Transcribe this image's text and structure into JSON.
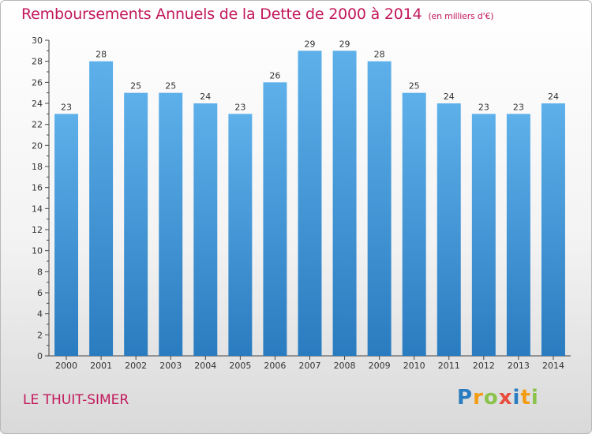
{
  "chart_data": {
    "type": "bar",
    "title": "Remboursements Annuels de la Dette de 2000 à 2014",
    "unit_label": "(en milliers d'€)",
    "categories": [
      "2000",
      "2001",
      "2002",
      "2003",
      "2004",
      "2005",
      "2006",
      "2007",
      "2008",
      "2009",
      "2010",
      "2011",
      "2012",
      "2013",
      "2014"
    ],
    "values": [
      23,
      28,
      25,
      25,
      24,
      23,
      26,
      29,
      29,
      28,
      25,
      24,
      23,
      23,
      24
    ],
    "ylim": [
      0,
      30
    ],
    "yticks": [
      0,
      2,
      4,
      6,
      8,
      10,
      12,
      14,
      16,
      18,
      20,
      22,
      24,
      26,
      28,
      30
    ],
    "xlabel": "",
    "ylabel": "",
    "grid": false,
    "bar_color_top": "#5eb0ea",
    "bar_color_bottom": "#2a7cc0"
  },
  "footer": {
    "town": "LE THUIT-SIMER",
    "logo_letters": [
      {
        "ch": "P",
        "color": "#2a7cc0"
      },
      {
        "ch": "r",
        "color": "#f39c12"
      },
      {
        "ch": "o",
        "color": "#8bc34a"
      },
      {
        "ch": "x",
        "color": "#e74c3c"
      },
      {
        "ch": "i",
        "color": "#2a7cc0"
      },
      {
        "ch": "t",
        "color": "#f39c12"
      },
      {
        "ch": "i",
        "color": "#8bc34a"
      }
    ]
  }
}
